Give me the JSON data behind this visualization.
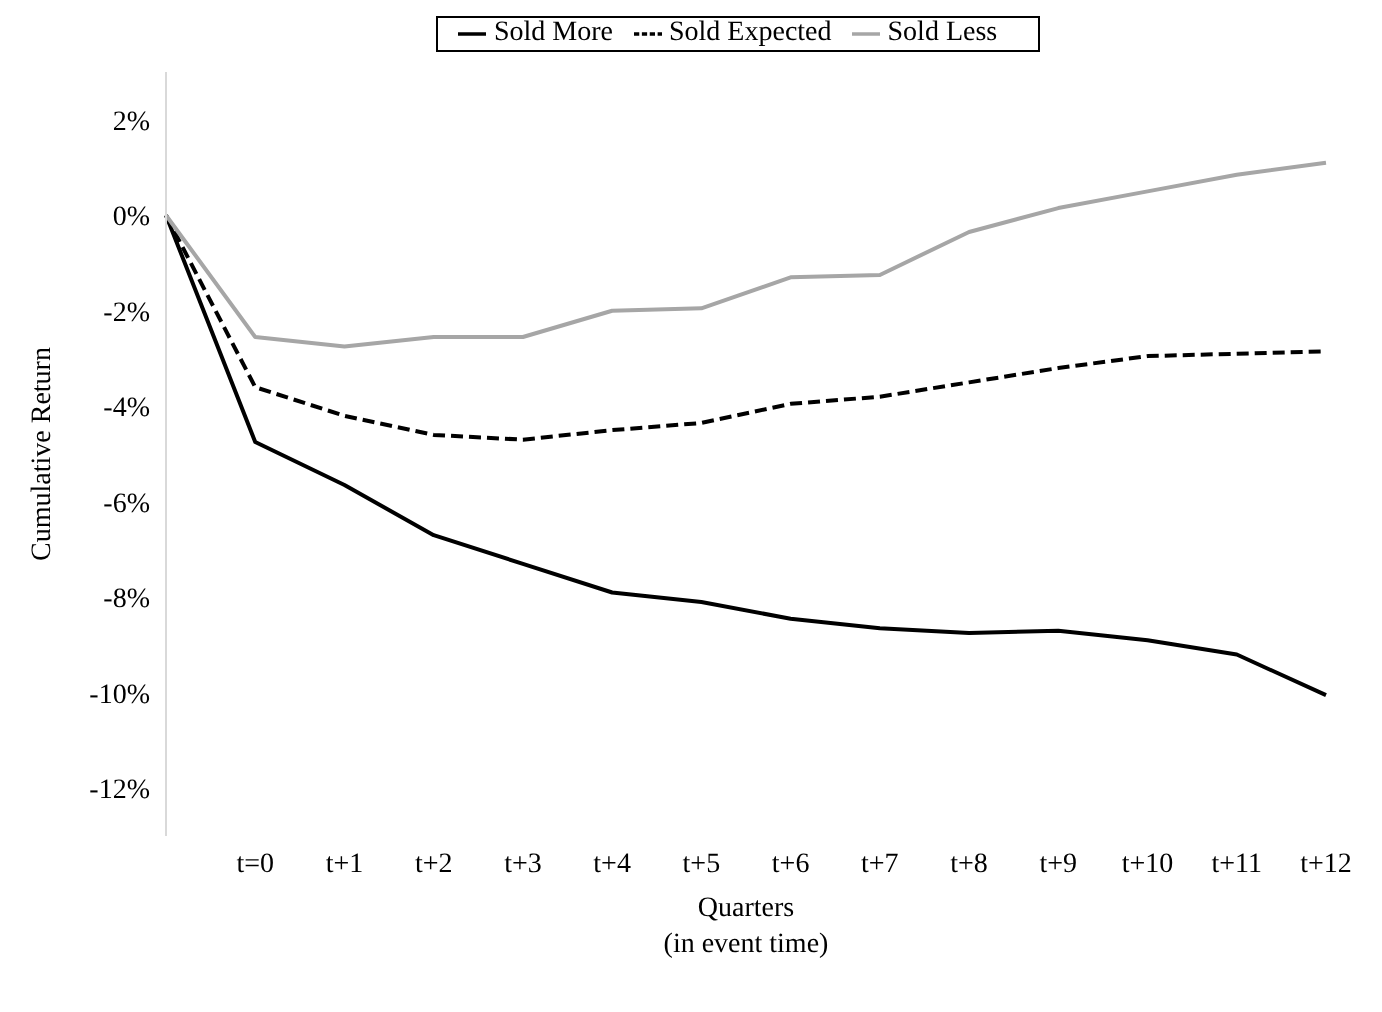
{
  "chart_data": {
    "type": "line",
    "xlabel": "Quarters\n(in event time)",
    "ylabel": "Cumulative Return",
    "categories": [
      null,
      "t=0",
      "t+1",
      "t+2",
      "t+3",
      "t+4",
      "t+5",
      "t+6",
      "t+7",
      "t+8",
      "t+9",
      "t+10",
      "t+11",
      "t+12"
    ],
    "series": [
      {
        "name": "Sold More",
        "color": "#000000",
        "line_style": "solid",
        "values": [
          0,
          -4.75,
          -5.65,
          -6.7,
          -7.3,
          -7.9,
          -8.1,
          -8.45,
          -8.65,
          -8.75,
          -8.7,
          -8.9,
          -9.2,
          -10.05
        ]
      },
      {
        "name": "Sold Expected",
        "color": "#000000",
        "line_style": "dashed",
        "values": [
          0,
          -3.6,
          -4.2,
          -4.6,
          -4.7,
          -4.5,
          -4.35,
          -3.95,
          -3.8,
          -3.5,
          -3.2,
          -2.95,
          -2.9,
          -2.85
        ]
      },
      {
        "name": "Sold Less",
        "color": "#a6a6a6",
        "line_style": "solid",
        "values": [
          0,
          -2.55,
          -2.75,
          -2.55,
          -2.55,
          -2.0,
          -1.95,
          -1.3,
          -1.25,
          -0.35,
          0.15,
          0.5,
          0.85,
          1.1
        ]
      }
    ],
    "ylim": [
      -13,
      3
    ],
    "yticks": [
      {
        "value": 2,
        "label": "2%"
      },
      {
        "value": 0,
        "label": "0%"
      },
      {
        "value": -2,
        "label": "-2%"
      },
      {
        "value": -4,
        "label": "-4%"
      },
      {
        "value": -6,
        "label": "-6%"
      },
      {
        "value": -8,
        "label": "-8%"
      },
      {
        "value": -10,
        "label": "-10%"
      },
      {
        "value": -12,
        "label": "-12%"
      }
    ],
    "grid": false,
    "legend": "top",
    "marker": "none"
  }
}
